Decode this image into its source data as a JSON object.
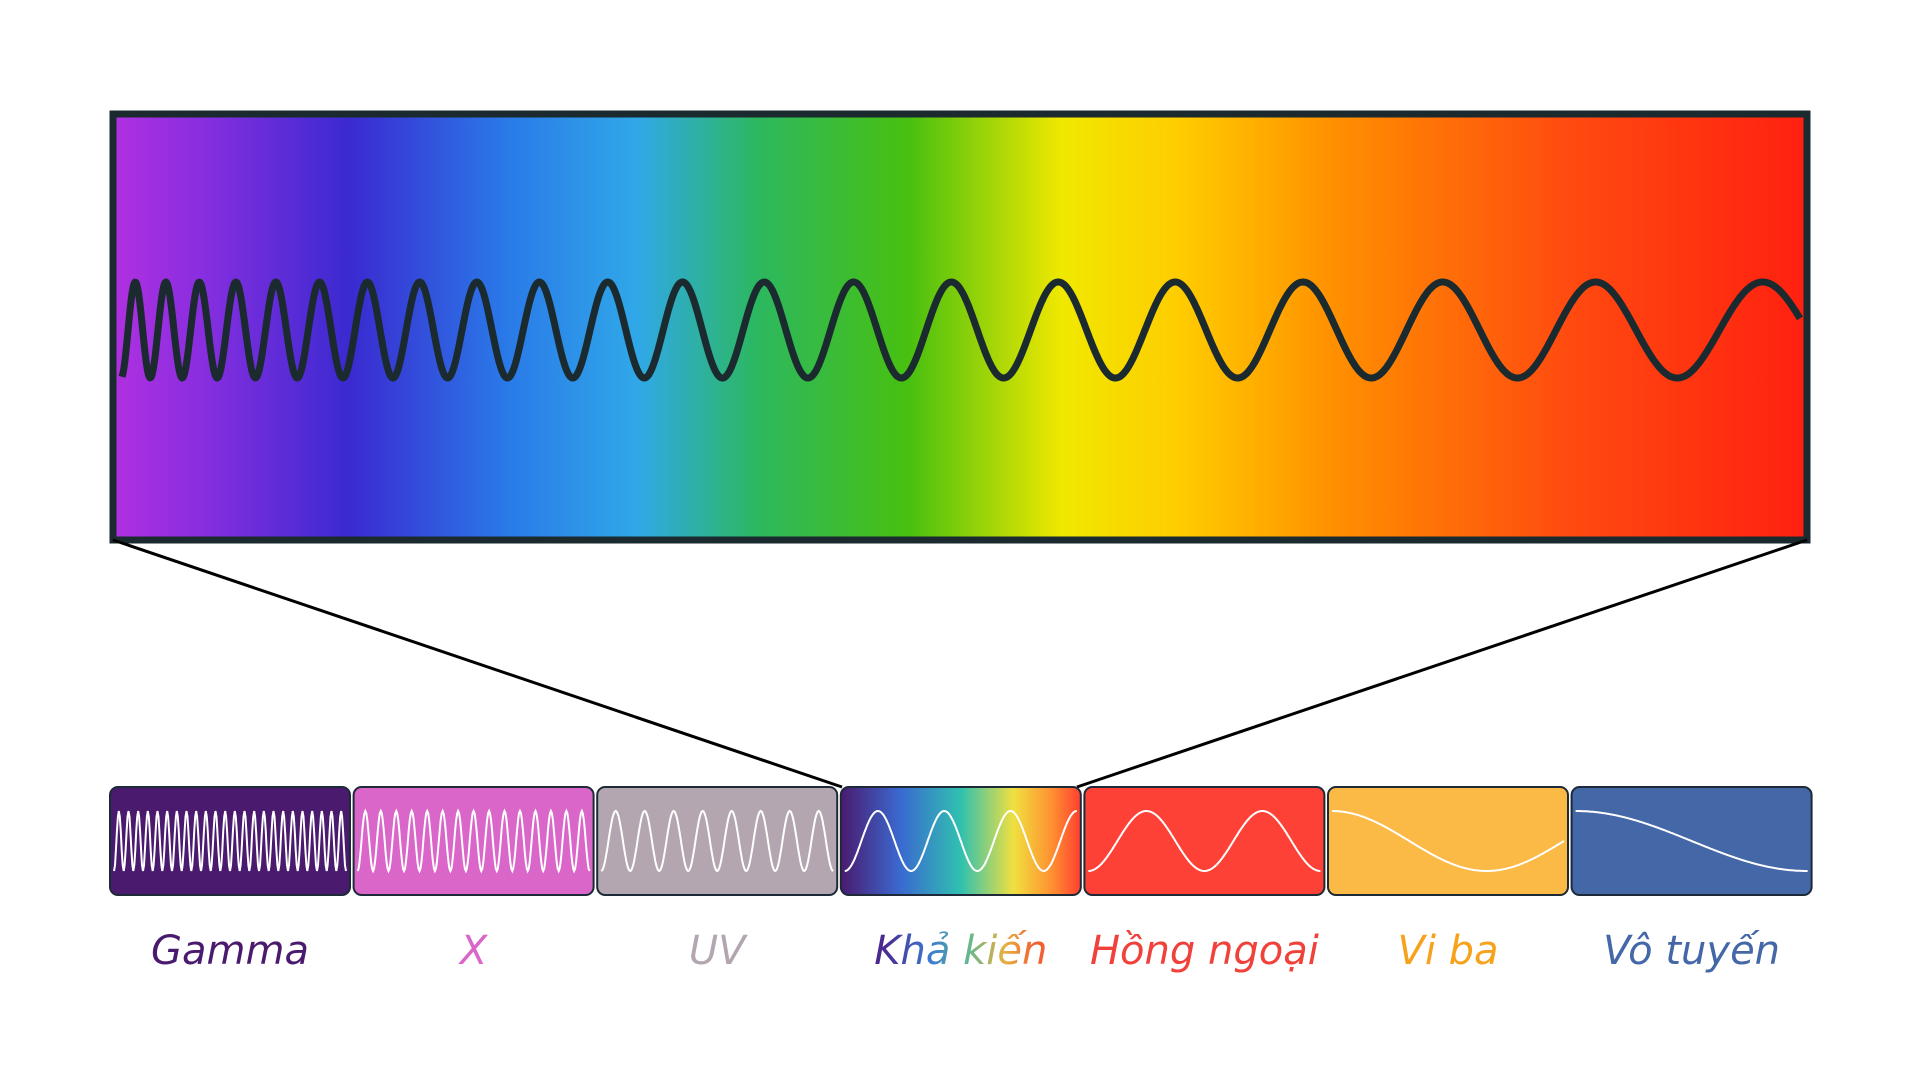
{
  "bands": [
    "Gamma",
    "X",
    "UV",
    "Khả kiến",
    "Hồng ngoại",
    "Vi ba",
    "Vô tuyến"
  ]
}
